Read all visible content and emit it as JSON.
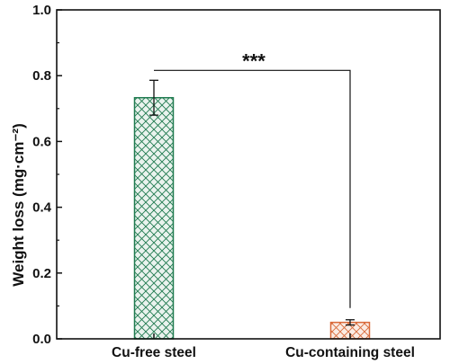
{
  "chart_data": {
    "type": "bar",
    "categories": [
      "Cu-free steel",
      "Cu-containing steel"
    ],
    "values": [
      0.733,
      0.05
    ],
    "errors": [
      0.053,
      0.008
    ],
    "ylabel": "Weight loss (mg·cm⁻²)",
    "xlabel": "",
    "ylim": [
      0,
      1.0
    ],
    "yticks": [
      "0.0",
      "0.2",
      "0.4",
      "0.6",
      "0.8",
      "1.0"
    ],
    "annotation": "***",
    "grid": false,
    "bar_colors": [
      "#1f7a4f",
      "#d96a3a"
    ],
    "bar_fill_light": [
      "#eaf3ee",
      "#fbece4"
    ],
    "bar_pattern": "crosshatch"
  }
}
